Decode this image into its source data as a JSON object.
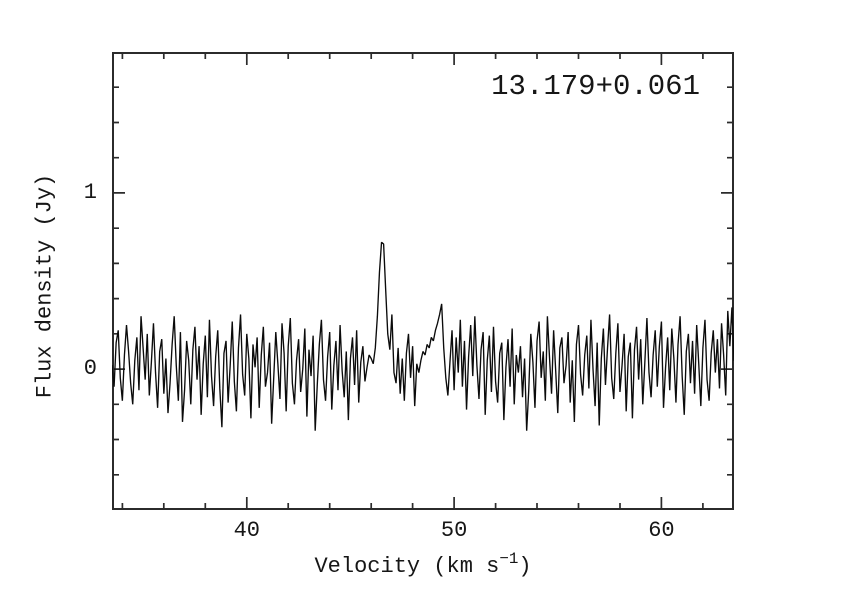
{
  "figure": {
    "background": "#ffffff",
    "text_color": "#161616"
  },
  "chart_data": {
    "type": "line",
    "title": "13.179+0.061",
    "xlabel": "Velocity (km s^-1)",
    "xlabel_parts": {
      "pre": "Velocity (km s",
      "sup": "−1",
      "post": ")"
    },
    "ylabel": "Flux density (Jy)",
    "xlim": [
      33.5,
      63.5
    ],
    "ylim": [
      -0.8,
      1.8
    ],
    "x_ticks_major": [
      40,
      50,
      60
    ],
    "x_tick_labels": [
      "40",
      "50",
      "60"
    ],
    "x_minor_step": 2,
    "y_ticks_major": [
      0,
      1
    ],
    "y_tick_labels": [
      "0",
      "1"
    ],
    "y_minor_step": 0.2,
    "grid": false,
    "legend": false,
    "line_color": "#0b0b0b",
    "frame_color": "#2b2b2b",
    "x_start": 33.5,
    "dx": 0.1,
    "peak": {
      "velocity": 46.5,
      "flux": 0.72
    },
    "flux": [
      0.02,
      -0.1,
      0.15,
      0.22,
      -0.05,
      -0.18,
      0.08,
      0.25,
      0.1,
      -0.08,
      -0.2,
      0.05,
      0.18,
      -0.12,
      0.3,
      0.12,
      -0.06,
      0.2,
      -0.15,
      0.04,
      0.26,
      -0.02,
      -0.22,
      0.1,
      0.17,
      -0.14,
      0.06,
      -0.25,
      -0.08,
      0.14,
      0.3,
      0.02,
      -0.18,
      0.21,
      -0.3,
      -0.12,
      0.16,
      0.05,
      -0.2,
      0.11,
      0.24,
      -0.06,
      0.13,
      -0.26,
      0.03,
      0.19,
      -0.16,
      0.28,
      -0.04,
      -0.21,
      0.07,
      0.22,
      -0.11,
      -0.33,
      0.09,
      0.16,
      -0.19,
      0.02,
      0.27,
      -0.07,
      -0.24,
      0.12,
      0.31,
      -0.03,
      -0.15,
      0.2,
      0.06,
      -0.28,
      0.14,
      0.01,
      0.18,
      -0.22,
      0.08,
      0.24,
      -0.1,
      -0.02,
      0.15,
      -0.31,
      -0.05,
      0.21,
      0.03,
      -0.17,
      0.26,
      0.09,
      -0.24,
      0.13,
      0.29,
      -0.08,
      -0.2,
      0.05,
      0.17,
      -0.13,
      0.0,
      0.23,
      -0.27,
      0.11,
      -0.04,
      0.19,
      -0.35,
      -0.09,
      0.14,
      0.28,
      -0.06,
      -0.18,
      0.07,
      0.21,
      -0.23,
      0.02,
      0.16,
      -0.12,
      0.25,
      -0.01,
      -0.16,
      0.1,
      -0.29,
      0.06,
      0.18,
      -0.09,
      0.22,
      -0.19,
      0.04,
      0.13,
      -0.07,
      0.01,
      0.08,
      0.06,
      0.03,
      0.12,
      0.3,
      0.55,
      0.72,
      0.71,
      0.45,
      0.2,
      0.11,
      0.31,
      -0.02,
      -0.08,
      0.12,
      -0.14,
      0.06,
      -0.18,
      0.09,
      0.2,
      -0.05,
      0.13,
      -0.21,
      0.03,
      -0.02,
      0.05,
      0.1,
      0.08,
      0.14,
      0.12,
      0.18,
      0.16,
      0.22,
      0.26,
      0.31,
      0.37,
      0.12,
      -0.05,
      -0.15,
      0.04,
      0.22,
      -0.12,
      0.18,
      -0.02,
      0.28,
      -0.1,
      0.16,
      -0.23,
      0.07,
      0.25,
      -0.04,
      0.3,
      0.02,
      -0.17,
      0.11,
      0.21,
      -0.26,
      0.05,
      0.19,
      -0.13,
      0.24,
      -0.07,
      -0.19,
      0.09,
      0.15,
      -0.29,
      0.01,
      0.17,
      -0.1,
      0.23,
      -0.2,
      0.08,
      -0.02,
      0.13,
      -0.16,
      0.06,
      -0.35,
      -0.12,
      0.2,
      0.04,
      -0.22,
      0.16,
      0.27,
      -0.05,
      0.1,
      -0.18,
      0.3,
      0.07,
      -0.14,
      0.22,
      -0.01,
      -0.25,
      0.12,
      0.18,
      -0.08,
      0.02,
      0.21,
      -0.19,
      0.05,
      -0.3,
      0.14,
      0.25,
      -0.03,
      -0.15,
      0.08,
      0.19,
      -0.11,
      0.28,
      0.0,
      -0.21,
      0.15,
      -0.32,
      0.06,
      0.23,
      -0.09,
      0.12,
      0.31,
      -0.05,
      -0.17,
      0.09,
      0.26,
      -0.13,
      0.02,
      0.2,
      -0.24,
      0.07,
      0.15,
      -0.28,
      0.11,
      0.24,
      -0.06,
      0.17,
      -0.2,
      0.04,
      0.29,
      -0.02,
      -0.16,
      0.08,
      0.22,
      -0.1,
      0.13,
      0.27,
      -0.22,
      0.01,
      0.18,
      -0.12,
      0.23,
      0.06,
      -0.19,
      0.14,
      0.3,
      -0.04,
      -0.26,
      0.1,
      0.2,
      -0.08,
      0.16,
      -0.14,
      0.25,
      0.03,
      -0.21,
      0.12,
      0.28,
      -0.06,
      -0.18,
      0.09,
      0.22,
      -0.02,
      0.17,
      -0.11,
      0.26,
      0.08,
      -0.15,
      0.33,
      0.13,
      0.35,
      0.05
    ]
  }
}
